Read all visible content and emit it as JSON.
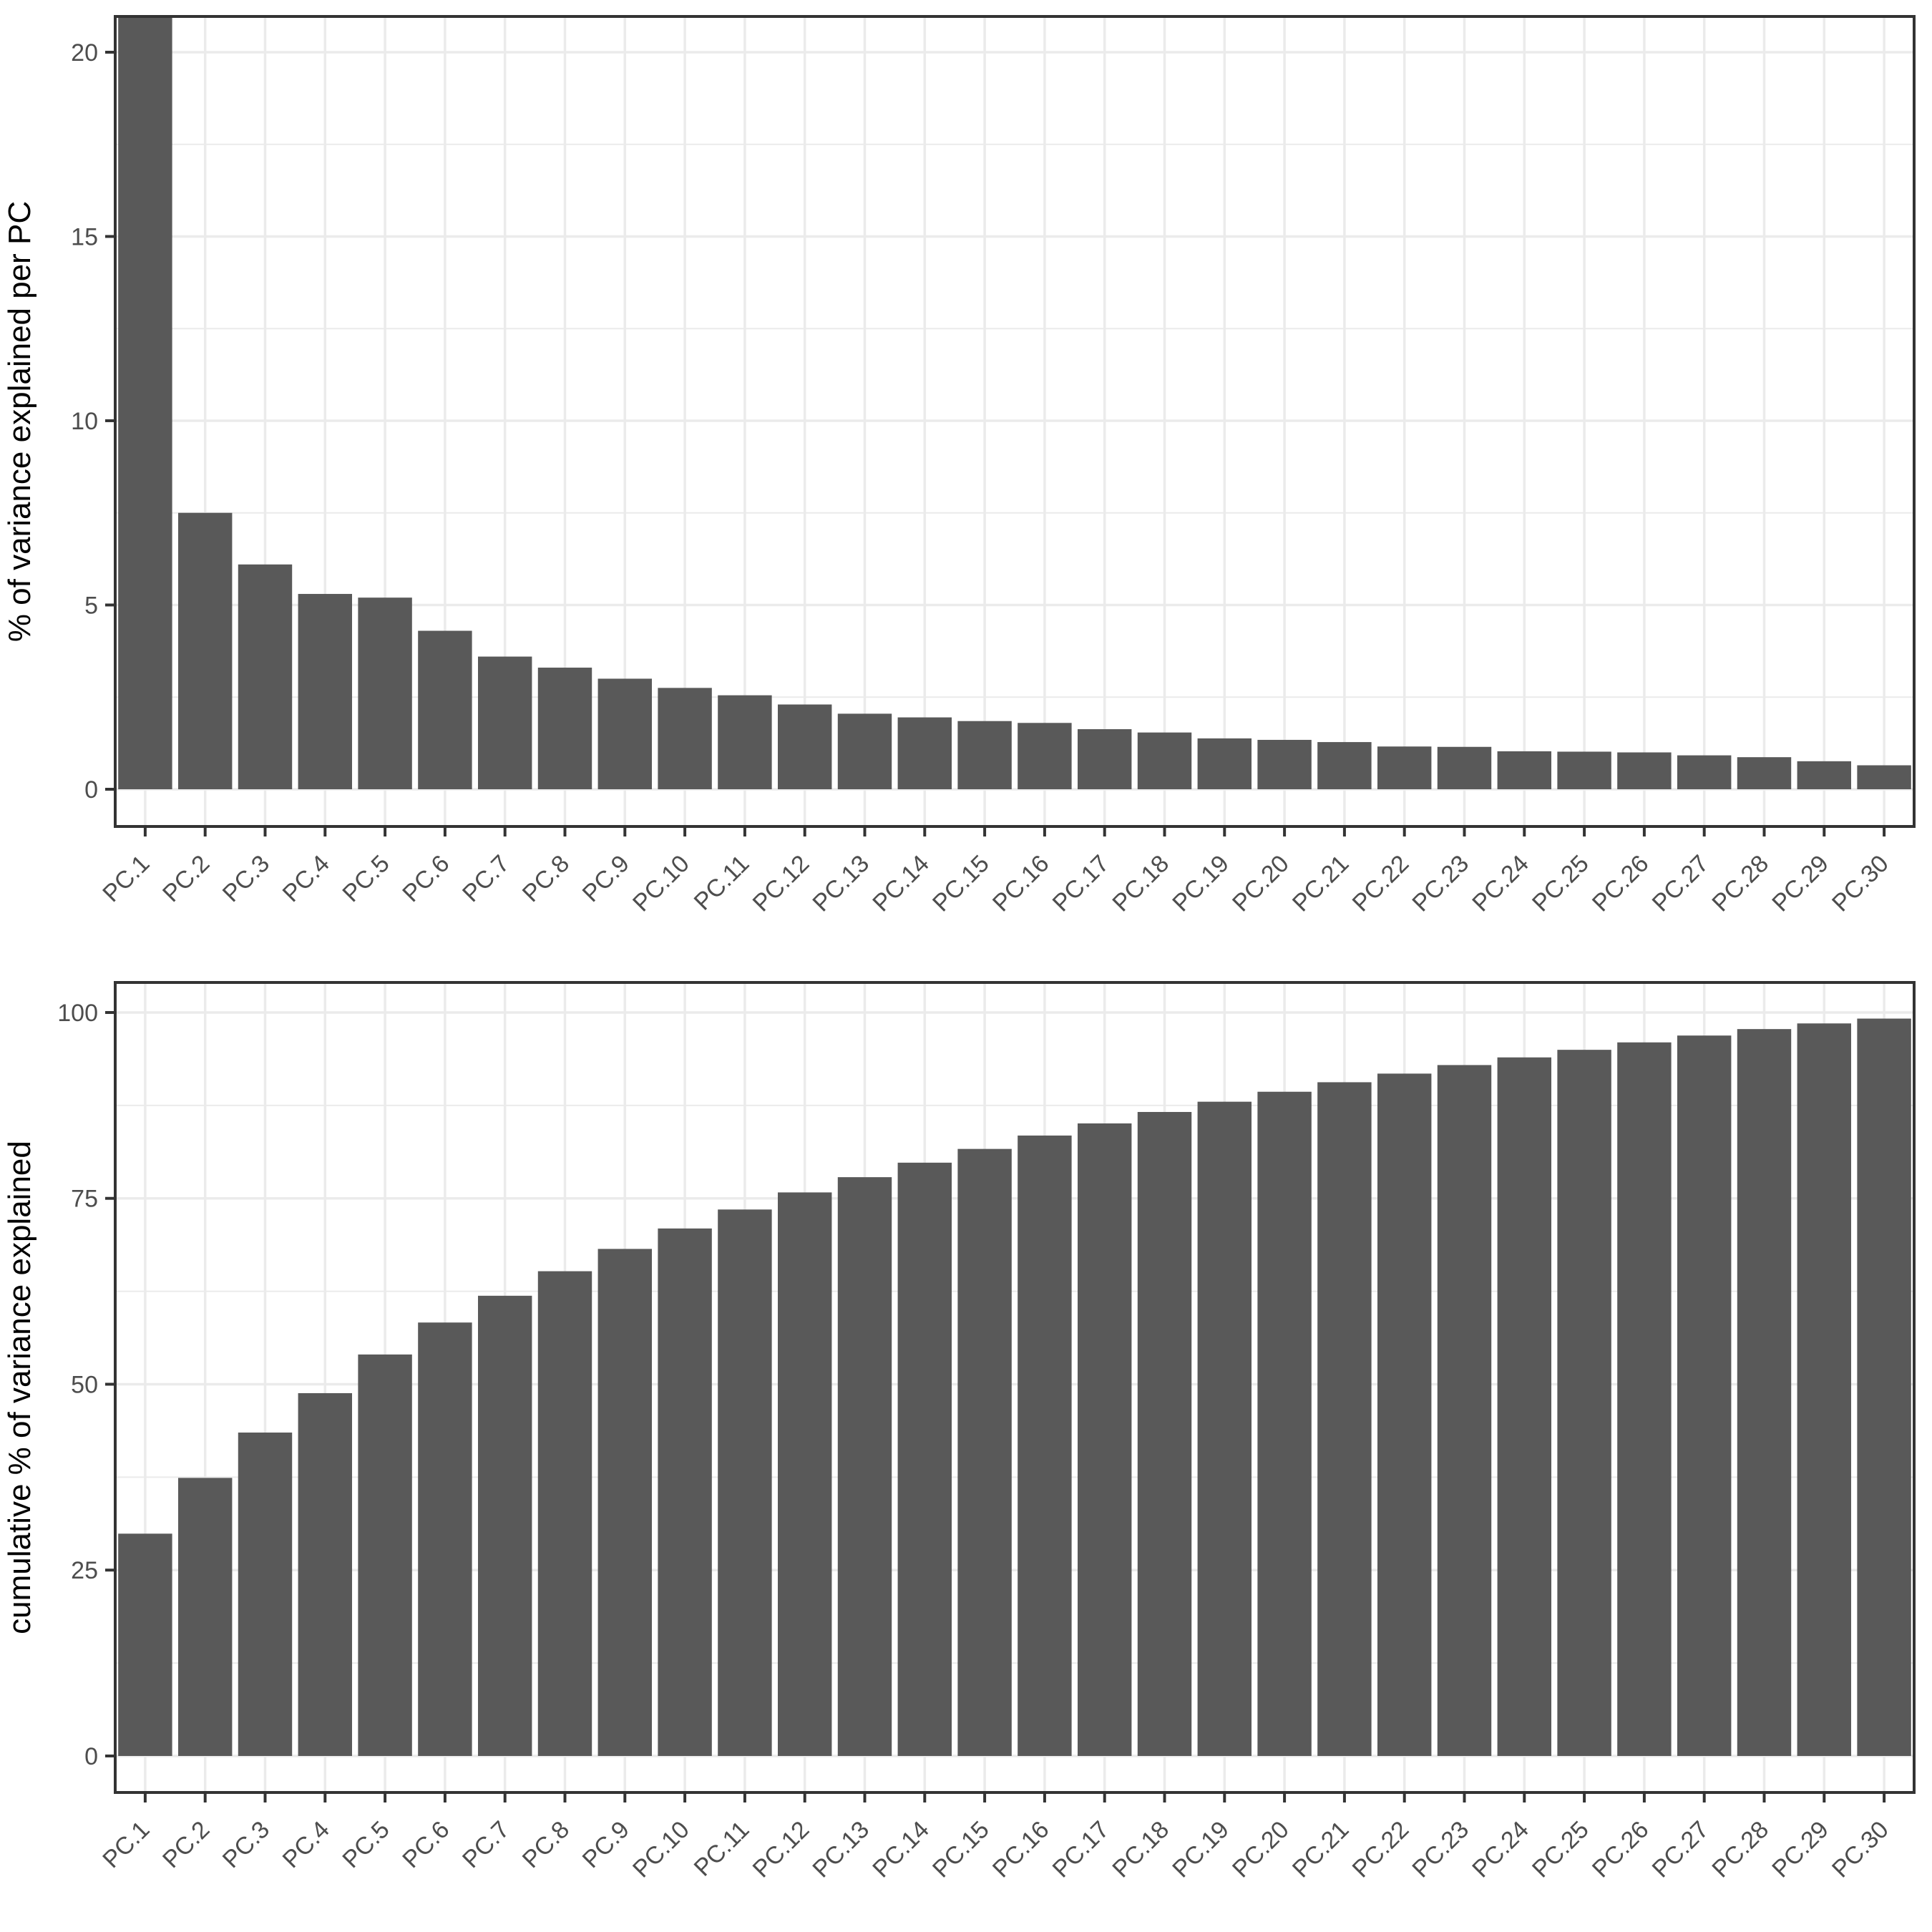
{
  "page": {
    "background": "#FFFFFF",
    "description": "Two stacked bar charts of PCA variance explained (scree plot and cumulative plot)"
  },
  "style": {
    "bar_fill": "#595959",
    "panel_border_color": "#333333",
    "grid_color": "#EBEBEB",
    "tick_color": "#333333",
    "tick_label_color": "#4D4D4D",
    "axis_title_color": "#000000",
    "plot_background": "#FFFFFF"
  },
  "chart_data": [
    {
      "type": "bar",
      "title": "",
      "xlabel": "",
      "ylabel": "% of variance explained per PC",
      "categories": [
        "PC.1",
        "PC.2",
        "PC.3",
        "PC.4",
        "PC.5",
        "PC.6",
        "PC.7",
        "PC.8",
        "PC.9",
        "PC.10",
        "PC.11",
        "PC.12",
        "PC.13",
        "PC.14",
        "PC.15",
        "PC.16",
        "PC.17",
        "PC.18",
        "PC.19",
        "PC.20",
        "PC.21",
        "PC.22",
        "PC.23",
        "PC.24",
        "PC.25",
        "PC.26",
        "PC.27",
        "PC.28",
        "PC.29",
        "PC.30"
      ],
      "values": [
        29.9,
        7.5,
        6.1,
        5.3,
        5.2,
        4.3,
        3.6,
        3.3,
        3.0,
        2.75,
        2.55,
        2.3,
        2.05,
        1.95,
        1.85,
        1.8,
        1.63,
        1.54,
        1.38,
        1.34,
        1.28,
        1.16,
        1.15,
        1.03,
        1.02,
        1.0,
        0.92,
        0.87,
        0.76,
        0.65
      ],
      "y_major_ticks": [
        0,
        5,
        10,
        15,
        20
      ],
      "y_minor_ticks": [
        2.5,
        7.5,
        12.5,
        17.5
      ],
      "ylim": [
        0,
        21
      ],
      "panel_range": [
        -1.01,
        20.97
      ],
      "grid": "major+minor, light gray on white",
      "legend": "none",
      "x_label_angle_deg": 45,
      "note": "First bar (PC.1) exceeds the y-axis maximum and is clipped at the top panel border"
    },
    {
      "type": "bar",
      "title": "",
      "xlabel": "",
      "ylabel": "cumulative % of variance explained",
      "categories": [
        "PC.1",
        "PC.2",
        "PC.3",
        "PC.4",
        "PC.5",
        "PC.6",
        "PC.7",
        "PC.8",
        "PC.9",
        "PC.10",
        "PC.11",
        "PC.12",
        "PC.13",
        "PC.14",
        "PC.15",
        "PC.16",
        "PC.17",
        "PC.18",
        "PC.19",
        "PC.20",
        "PC.21",
        "PC.22",
        "PC.23",
        "PC.24",
        "PC.25",
        "PC.26",
        "PC.27",
        "PC.28",
        "PC.29",
        "PC.30"
      ],
      "values": [
        29.9,
        37.4,
        43.5,
        48.8,
        54.0,
        58.3,
        61.9,
        65.2,
        68.2,
        70.95,
        73.5,
        75.8,
        77.85,
        79.8,
        81.65,
        83.45,
        85.08,
        86.62,
        88.0,
        89.34,
        90.62,
        91.78,
        92.93,
        93.96,
        94.98,
        95.98,
        96.9,
        97.77,
        98.53,
        99.18
      ],
      "y_major_ticks": [
        0,
        25,
        50,
        75,
        100
      ],
      "y_minor_ticks": [
        12.5,
        37.5,
        62.5,
        87.5
      ],
      "ylim": [
        0,
        100
      ],
      "panel_range": [
        -4.91,
        104.04
      ],
      "grid": "major+minor, light gray on white",
      "legend": "none",
      "x_label_angle_deg": 45
    }
  ]
}
